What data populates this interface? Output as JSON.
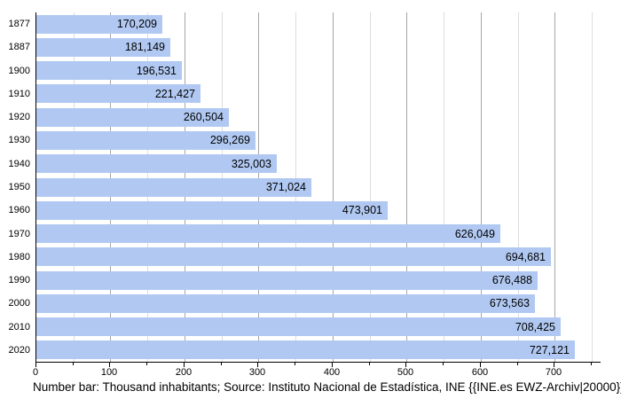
{
  "chart_data": {
    "type": "bar",
    "orientation": "horizontal",
    "title": "",
    "xlabel": "",
    "ylabel": "",
    "categories": [
      "1877",
      "1887",
      "1900",
      "1910",
      "1920",
      "1930",
      "1940",
      "1950",
      "1960",
      "1970",
      "1980",
      "1990",
      "2000",
      "2010",
      "2020"
    ],
    "values": [
      170.209,
      181.149,
      196.531,
      221.427,
      260.504,
      296.269,
      325.003,
      371.024,
      473.901,
      626.049,
      694.681,
      676.488,
      673.563,
      708.425,
      727.121
    ],
    "value_labels": [
      "170,209",
      "181,149",
      "196,531",
      "221,427",
      "260,504",
      "296,269",
      "325,003",
      "371,024",
      "473,901",
      "626,049",
      "694,681",
      "676,488",
      "673,563",
      "708,425",
      "727,121"
    ],
    "unit": "Thousand inhabitants",
    "xlim": [
      0,
      762
    ],
    "x_major_ticks": [
      0,
      100,
      200,
      300,
      400,
      500,
      600,
      700
    ],
    "x_major_tick_labels": [
      "0",
      "100",
      "200",
      "300",
      "400",
      "500",
      "600",
      "700"
    ],
    "x_minor_tick_step": 50,
    "grid": true,
    "legend_position": "none",
    "colors": {
      "bar_fill": "#b1c9f2",
      "major_grid": "#a6a6a6",
      "minor_grid": "#dcdcdc",
      "axis": "#000000",
      "text": "#000000",
      "background": "#ffffff"
    }
  },
  "caption": "Number bar: Thousand inhabitants; Source: Instituto Nacional de Estadística, INE {{INE.es EWZ-Archiv|20000}}"
}
